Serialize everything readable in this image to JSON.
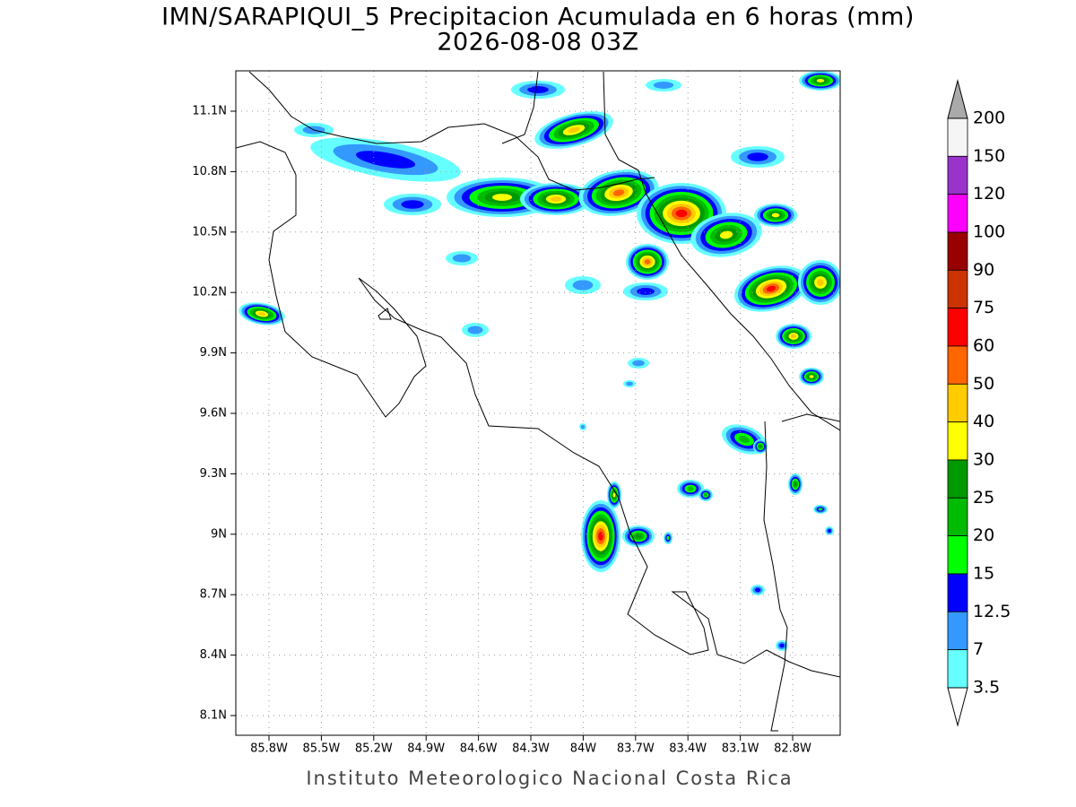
{
  "title": [
    "IMN/SARAPIQUI_5 Precipitacion Acumulada en 6 horas (mm)",
    "2026-08-08 03Z"
  ],
  "map": {
    "yticks": [
      "11.1N",
      "10.8N",
      "10.5N",
      "10.2N",
      "9.9N",
      "9.6N",
      "9.3N",
      "9N",
      "8.7N",
      "8.4N",
      "8.1N"
    ],
    "xticks": [
      "85.8W",
      "85.5W",
      "85.2W",
      "84.9W",
      "84.6W",
      "84.3W",
      "84W",
      "83.7W",
      "83.4W",
      "83.1W",
      "82.8W"
    ]
  },
  "colorbar": {
    "labels": [
      200,
      150,
      120,
      100,
      90,
      75,
      60,
      50,
      40,
      30,
      25,
      20,
      15,
      12.5,
      7,
      3.5
    ],
    "colors": [
      "#f5f5f5",
      "#9933cc",
      "#ff00ff",
      "#990000",
      "#cc3300",
      "#ff0000",
      "#ff6600",
      "#ffcc00",
      "#ffff00",
      "#009900",
      "#00bb00",
      "#00ff00",
      "#0000ff",
      "#3399ff",
      "#66ffff"
    ],
    "over_color": "#aaaaaa",
    "under_color": "#ffffff"
  },
  "footer": "Instituto Meteorologico Nacional Costa Rica"
}
